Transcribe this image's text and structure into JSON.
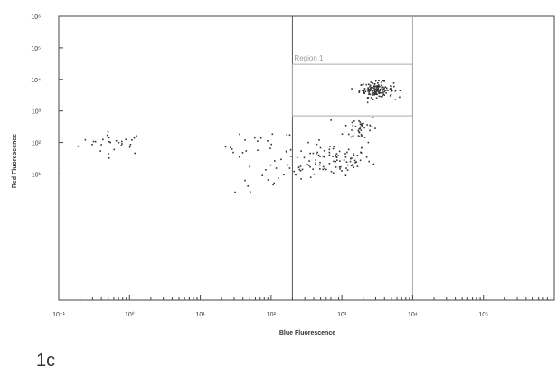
{
  "chart_data": {
    "type": "scatter",
    "x_scale": "log",
    "y_scale": "log",
    "xlabel": "Blue Fluorescence",
    "ylabel": "Red Fluorescence",
    "xlim": [
      0.1,
      1000000
    ],
    "ylim": [
      0.001,
      1000000
    ],
    "x_ticks": [
      {
        "value": 0.1,
        "label": "10⁻¹"
      },
      {
        "value": 1,
        "label": "10⁰"
      },
      {
        "value": 10,
        "label": "10¹"
      },
      {
        "value": 100,
        "label": "10²"
      },
      {
        "value": 1000,
        "label": "10³"
      },
      {
        "value": 10000,
        "label": "10⁴"
      },
      {
        "value": 100000,
        "label": "10⁵"
      }
    ],
    "y_ticks": [
      {
        "value": 1000000,
        "label": "10⁶"
      },
      {
        "value": 100000,
        "label": "10⁵"
      },
      {
        "value": 10000,
        "label": "10⁴"
      },
      {
        "value": 1000,
        "label": "10³"
      },
      {
        "value": 100,
        "label": "10²"
      },
      {
        "value": 10,
        "label": "10¹"
      }
    ],
    "gate_lines_x": [
      200,
      10000
    ],
    "region": {
      "name": "Region 1",
      "x_range": [
        200,
        10000
      ],
      "y_range": [
        700,
        30000
      ]
    },
    "grid": false,
    "point_color": "#333333",
    "clusters": [
      {
        "cx": 0.6,
        "cy": 100,
        "sx": 0.25,
        "sy": 0.18,
        "n": 28
      },
      {
        "cx": 70,
        "cy": 80,
        "sx": 0.25,
        "sy": 0.25,
        "n": 20
      },
      {
        "cx": 700,
        "cy": 30,
        "sx": 0.28,
        "sy": 0.25,
        "n": 90
      },
      {
        "cx": 1800,
        "cy": 300,
        "sx": 0.12,
        "sy": 0.22,
        "n": 40
      },
      {
        "cx": 3000,
        "cy": 5000,
        "sx": 0.12,
        "sy": 0.12,
        "n": 140
      },
      {
        "cx": 150,
        "cy": 10,
        "sx": 0.35,
        "sy": 0.3,
        "n": 30
      }
    ]
  },
  "figure_label": "1c"
}
